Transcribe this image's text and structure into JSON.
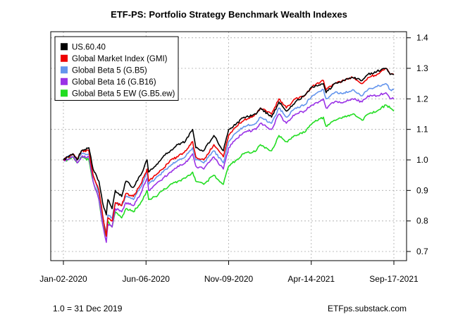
{
  "chart_data": {
    "type": "line",
    "title": "ETF-PS: Portfolio Strategy Benchmark Wealth Indexes",
    "xlabel": "",
    "ylabel": "",
    "x_ticks": [
      "Jan-02-2020",
      "Jun-06-2020",
      "Nov-09-2020",
      "Apr-14-2021",
      "Sep-17-2021"
    ],
    "x_range": [
      "2020-01-02",
      "2021-09-17"
    ],
    "y_ticks": [
      0.7,
      0.8,
      0.9,
      1.0,
      1.1,
      1.2,
      1.3,
      1.4
    ],
    "ylim": [
      0.67,
      1.42
    ],
    "y_axis_side": "right",
    "grid": true,
    "legend_position": "top-left",
    "series": [
      {
        "name": "US.60.40",
        "color": "#000000",
        "points": [
          [
            "2020-01-02",
            1.0
          ],
          [
            "2020-01-10",
            1.01
          ],
          [
            "2020-01-20",
            1.02
          ],
          [
            "2020-01-28",
            1.0
          ],
          [
            "2020-02-05",
            1.03
          ],
          [
            "2020-02-19",
            1.04
          ],
          [
            "2020-02-27",
            0.97
          ],
          [
            "2020-03-09",
            0.93
          ],
          [
            "2020-03-16",
            0.86
          ],
          [
            "2020-03-23",
            0.82
          ],
          [
            "2020-03-26",
            0.87
          ],
          [
            "2020-04-03",
            0.84
          ],
          [
            "2020-04-09",
            0.9
          ],
          [
            "2020-04-21",
            0.88
          ],
          [
            "2020-04-29",
            0.93
          ],
          [
            "2020-05-13",
            0.91
          ],
          [
            "2020-05-27",
            0.95
          ],
          [
            "2020-06-08",
            1.0
          ],
          [
            "2020-06-11",
            0.96
          ],
          [
            "2020-06-24",
            0.98
          ],
          [
            "2020-07-08",
            1.01
          ],
          [
            "2020-07-22",
            1.03
          ],
          [
            "2020-08-05",
            1.05
          ],
          [
            "2020-08-19",
            1.06
          ],
          [
            "2020-09-02",
            1.1
          ],
          [
            "2020-09-08",
            1.04
          ],
          [
            "2020-09-23",
            1.03
          ],
          [
            "2020-10-12",
            1.08
          ],
          [
            "2020-10-30",
            1.03
          ],
          [
            "2020-11-09",
            1.1
          ],
          [
            "2020-11-24",
            1.12
          ],
          [
            "2020-12-08",
            1.14
          ],
          [
            "2020-12-31",
            1.15
          ],
          [
            "2021-01-08",
            1.17
          ],
          [
            "2021-01-29",
            1.14
          ],
          [
            "2021-02-12",
            1.19
          ],
          [
            "2021-02-26",
            1.16
          ],
          [
            "2021-03-15",
            1.19
          ],
          [
            "2021-04-01",
            1.21
          ],
          [
            "2021-04-16",
            1.24
          ],
          [
            "2021-05-07",
            1.25
          ],
          [
            "2021-05-12",
            1.22
          ],
          [
            "2021-05-28",
            1.25
          ],
          [
            "2021-06-15",
            1.26
          ],
          [
            "2021-07-01",
            1.27
          ],
          [
            "2021-07-19",
            1.26
          ],
          [
            "2021-07-30",
            1.28
          ],
          [
            "2021-08-16",
            1.29
          ],
          [
            "2021-09-02",
            1.3
          ],
          [
            "2021-09-10",
            1.28
          ],
          [
            "2021-09-17",
            1.28
          ]
        ]
      },
      {
        "name": "Global Market Index (GMI)",
        "color": "#ee0000",
        "points": [
          [
            "2020-01-02",
            1.0
          ],
          [
            "2020-01-10",
            1.01
          ],
          [
            "2020-01-20",
            1.02
          ],
          [
            "2020-01-28",
            1.0
          ],
          [
            "2020-02-05",
            1.03
          ],
          [
            "2020-02-19",
            1.03
          ],
          [
            "2020-02-27",
            0.95
          ],
          [
            "2020-03-09",
            0.9
          ],
          [
            "2020-03-16",
            0.82
          ],
          [
            "2020-03-23",
            0.75
          ],
          [
            "2020-03-26",
            0.81
          ],
          [
            "2020-04-03",
            0.8
          ],
          [
            "2020-04-09",
            0.86
          ],
          [
            "2020-04-21",
            0.85
          ],
          [
            "2020-04-29",
            0.89
          ],
          [
            "2020-05-13",
            0.88
          ],
          [
            "2020-05-27",
            0.92
          ],
          [
            "2020-06-08",
            0.97
          ],
          [
            "2020-06-11",
            0.93
          ],
          [
            "2020-06-24",
            0.95
          ],
          [
            "2020-07-08",
            0.97
          ],
          [
            "2020-07-22",
            1.0
          ],
          [
            "2020-08-05",
            1.01
          ],
          [
            "2020-08-19",
            1.03
          ],
          [
            "2020-09-02",
            1.06
          ],
          [
            "2020-09-08",
            1.01
          ],
          [
            "2020-09-23",
            1.0
          ],
          [
            "2020-10-12",
            1.05
          ],
          [
            "2020-10-30",
            1.01
          ],
          [
            "2020-11-09",
            1.08
          ],
          [
            "2020-11-24",
            1.11
          ],
          [
            "2020-12-08",
            1.13
          ],
          [
            "2020-12-31",
            1.15
          ],
          [
            "2021-01-08",
            1.17
          ],
          [
            "2021-01-29",
            1.15
          ],
          [
            "2021-02-12",
            1.2
          ],
          [
            "2021-02-26",
            1.17
          ],
          [
            "2021-03-15",
            1.2
          ],
          [
            "2021-04-01",
            1.21
          ],
          [
            "2021-04-16",
            1.24
          ],
          [
            "2021-05-07",
            1.26
          ],
          [
            "2021-05-12",
            1.23
          ],
          [
            "2021-05-28",
            1.25
          ],
          [
            "2021-06-15",
            1.26
          ],
          [
            "2021-07-01",
            1.27
          ],
          [
            "2021-07-19",
            1.25
          ],
          [
            "2021-07-30",
            1.27
          ],
          [
            "2021-08-16",
            1.28
          ],
          [
            "2021-09-02",
            1.3
          ],
          [
            "2021-09-10",
            1.28
          ],
          [
            "2021-09-17",
            1.28
          ]
        ]
      },
      {
        "name": "Global Beta 5 (G.B5)",
        "color": "#6495ed",
        "points": [
          [
            "2020-01-02",
            1.0
          ],
          [
            "2020-01-10",
            1.01
          ],
          [
            "2020-01-20",
            1.02
          ],
          [
            "2020-01-28",
            1.0
          ],
          [
            "2020-02-05",
            1.02
          ],
          [
            "2020-02-19",
            1.02
          ],
          [
            "2020-02-27",
            0.95
          ],
          [
            "2020-03-09",
            0.89
          ],
          [
            "2020-03-16",
            0.81
          ],
          [
            "2020-03-23",
            0.76
          ],
          [
            "2020-03-26",
            0.82
          ],
          [
            "2020-04-03",
            0.81
          ],
          [
            "2020-04-09",
            0.86
          ],
          [
            "2020-04-21",
            0.85
          ],
          [
            "2020-04-29",
            0.88
          ],
          [
            "2020-05-13",
            0.87
          ],
          [
            "2020-05-27",
            0.91
          ],
          [
            "2020-06-08",
            0.96
          ],
          [
            "2020-06-11",
            0.92
          ],
          [
            "2020-06-24",
            0.94
          ],
          [
            "2020-07-08",
            0.96
          ],
          [
            "2020-07-22",
            0.98
          ],
          [
            "2020-08-05",
            1.0
          ],
          [
            "2020-08-19",
            1.01
          ],
          [
            "2020-09-02",
            1.04
          ],
          [
            "2020-09-08",
            1.0
          ],
          [
            "2020-09-23",
            0.99
          ],
          [
            "2020-10-12",
            1.03
          ],
          [
            "2020-10-30",
            0.99
          ],
          [
            "2020-11-09",
            1.06
          ],
          [
            "2020-11-24",
            1.09
          ],
          [
            "2020-12-08",
            1.11
          ],
          [
            "2020-12-31",
            1.12
          ],
          [
            "2021-01-08",
            1.14
          ],
          [
            "2021-01-29",
            1.12
          ],
          [
            "2021-02-12",
            1.17
          ],
          [
            "2021-02-26",
            1.14
          ],
          [
            "2021-03-15",
            1.17
          ],
          [
            "2021-04-01",
            1.18
          ],
          [
            "2021-04-16",
            1.21
          ],
          [
            "2021-05-07",
            1.23
          ],
          [
            "2021-05-12",
            1.2
          ],
          [
            "2021-05-28",
            1.22
          ],
          [
            "2021-06-15",
            1.22
          ],
          [
            "2021-07-01",
            1.23
          ],
          [
            "2021-07-19",
            1.21
          ],
          [
            "2021-07-30",
            1.23
          ],
          [
            "2021-08-16",
            1.24
          ],
          [
            "2021-09-02",
            1.25
          ],
          [
            "2021-09-10",
            1.23
          ],
          [
            "2021-09-17",
            1.23
          ]
        ]
      },
      {
        "name": "Global Beta 16 (G.B16)",
        "color": "#9a32e6",
        "points": [
          [
            "2020-01-02",
            1.0
          ],
          [
            "2020-01-10",
            1.0
          ],
          [
            "2020-01-20",
            1.01
          ],
          [
            "2020-01-28",
            0.99
          ],
          [
            "2020-02-05",
            1.01
          ],
          [
            "2020-02-19",
            1.01
          ],
          [
            "2020-02-27",
            0.93
          ],
          [
            "2020-03-09",
            0.87
          ],
          [
            "2020-03-16",
            0.79
          ],
          [
            "2020-03-23",
            0.73
          ],
          [
            "2020-03-26",
            0.79
          ],
          [
            "2020-04-03",
            0.78
          ],
          [
            "2020-04-09",
            0.84
          ],
          [
            "2020-04-21",
            0.83
          ],
          [
            "2020-04-29",
            0.86
          ],
          [
            "2020-05-13",
            0.85
          ],
          [
            "2020-05-27",
            0.89
          ],
          [
            "2020-06-08",
            0.94
          ],
          [
            "2020-06-11",
            0.9
          ],
          [
            "2020-06-24",
            0.92
          ],
          [
            "2020-07-08",
            0.94
          ],
          [
            "2020-07-22",
            0.96
          ],
          [
            "2020-08-05",
            0.98
          ],
          [
            "2020-08-19",
            0.99
          ],
          [
            "2020-09-02",
            1.02
          ],
          [
            "2020-09-08",
            0.98
          ],
          [
            "2020-09-23",
            0.97
          ],
          [
            "2020-10-12",
            1.01
          ],
          [
            "2020-10-30",
            0.97
          ],
          [
            "2020-11-09",
            1.04
          ],
          [
            "2020-11-24",
            1.07
          ],
          [
            "2020-12-08",
            1.09
          ],
          [
            "2020-12-31",
            1.1
          ],
          [
            "2021-01-08",
            1.12
          ],
          [
            "2021-01-29",
            1.1
          ],
          [
            "2021-02-12",
            1.15
          ],
          [
            "2021-02-26",
            1.12
          ],
          [
            "2021-03-15",
            1.15
          ],
          [
            "2021-04-01",
            1.16
          ],
          [
            "2021-04-16",
            1.18
          ],
          [
            "2021-05-07",
            1.2
          ],
          [
            "2021-05-12",
            1.17
          ],
          [
            "2021-05-28",
            1.19
          ],
          [
            "2021-06-15",
            1.19
          ],
          [
            "2021-07-01",
            1.2
          ],
          [
            "2021-07-19",
            1.19
          ],
          [
            "2021-07-30",
            1.21
          ],
          [
            "2021-08-16",
            1.21
          ],
          [
            "2021-09-02",
            1.22
          ],
          [
            "2021-09-10",
            1.2
          ],
          [
            "2021-09-17",
            1.2
          ]
        ]
      },
      {
        "name": "Global Beta 5 EW (G.B5.ew)",
        "color": "#22dd22",
        "points": [
          [
            "2020-01-02",
            1.0
          ],
          [
            "2020-01-10",
            1.0
          ],
          [
            "2020-01-20",
            1.01
          ],
          [
            "2020-01-28",
            0.99
          ],
          [
            "2020-02-05",
            1.01
          ],
          [
            "2020-02-19",
            1.0
          ],
          [
            "2020-02-27",
            0.93
          ],
          [
            "2020-03-09",
            0.87
          ],
          [
            "2020-03-16",
            0.79
          ],
          [
            "2020-03-23",
            0.75
          ],
          [
            "2020-03-26",
            0.8
          ],
          [
            "2020-04-03",
            0.78
          ],
          [
            "2020-04-09",
            0.83
          ],
          [
            "2020-04-21",
            0.81
          ],
          [
            "2020-04-29",
            0.84
          ],
          [
            "2020-05-13",
            0.83
          ],
          [
            "2020-05-27",
            0.86
          ],
          [
            "2020-06-08",
            0.9
          ],
          [
            "2020-06-11",
            0.87
          ],
          [
            "2020-06-24",
            0.88
          ],
          [
            "2020-07-08",
            0.9
          ],
          [
            "2020-07-22",
            0.92
          ],
          [
            "2020-08-05",
            0.93
          ],
          [
            "2020-08-19",
            0.94
          ],
          [
            "2020-09-02",
            0.96
          ],
          [
            "2020-09-08",
            0.93
          ],
          [
            "2020-09-23",
            0.92
          ],
          [
            "2020-10-12",
            0.95
          ],
          [
            "2020-10-30",
            0.92
          ],
          [
            "2020-11-09",
            0.98
          ],
          [
            "2020-11-24",
            1.0
          ],
          [
            "2020-12-08",
            1.02
          ],
          [
            "2020-12-31",
            1.03
          ],
          [
            "2021-01-08",
            1.05
          ],
          [
            "2021-01-29",
            1.03
          ],
          [
            "2021-02-12",
            1.08
          ],
          [
            "2021-02-26",
            1.06
          ],
          [
            "2021-03-15",
            1.08
          ],
          [
            "2021-04-01",
            1.09
          ],
          [
            "2021-04-16",
            1.12
          ],
          [
            "2021-05-07",
            1.14
          ],
          [
            "2021-05-12",
            1.11
          ],
          [
            "2021-05-28",
            1.13
          ],
          [
            "2021-06-15",
            1.14
          ],
          [
            "2021-07-01",
            1.15
          ],
          [
            "2021-07-19",
            1.13
          ],
          [
            "2021-07-30",
            1.15
          ],
          [
            "2021-08-16",
            1.16
          ],
          [
            "2021-09-02",
            1.18
          ],
          [
            "2021-09-10",
            1.17
          ],
          [
            "2021-09-17",
            1.16
          ]
        ]
      }
    ]
  },
  "footer": {
    "left_note": "1.0 = 31 Dec 2019",
    "right_note": "ETFps.substack.com"
  }
}
